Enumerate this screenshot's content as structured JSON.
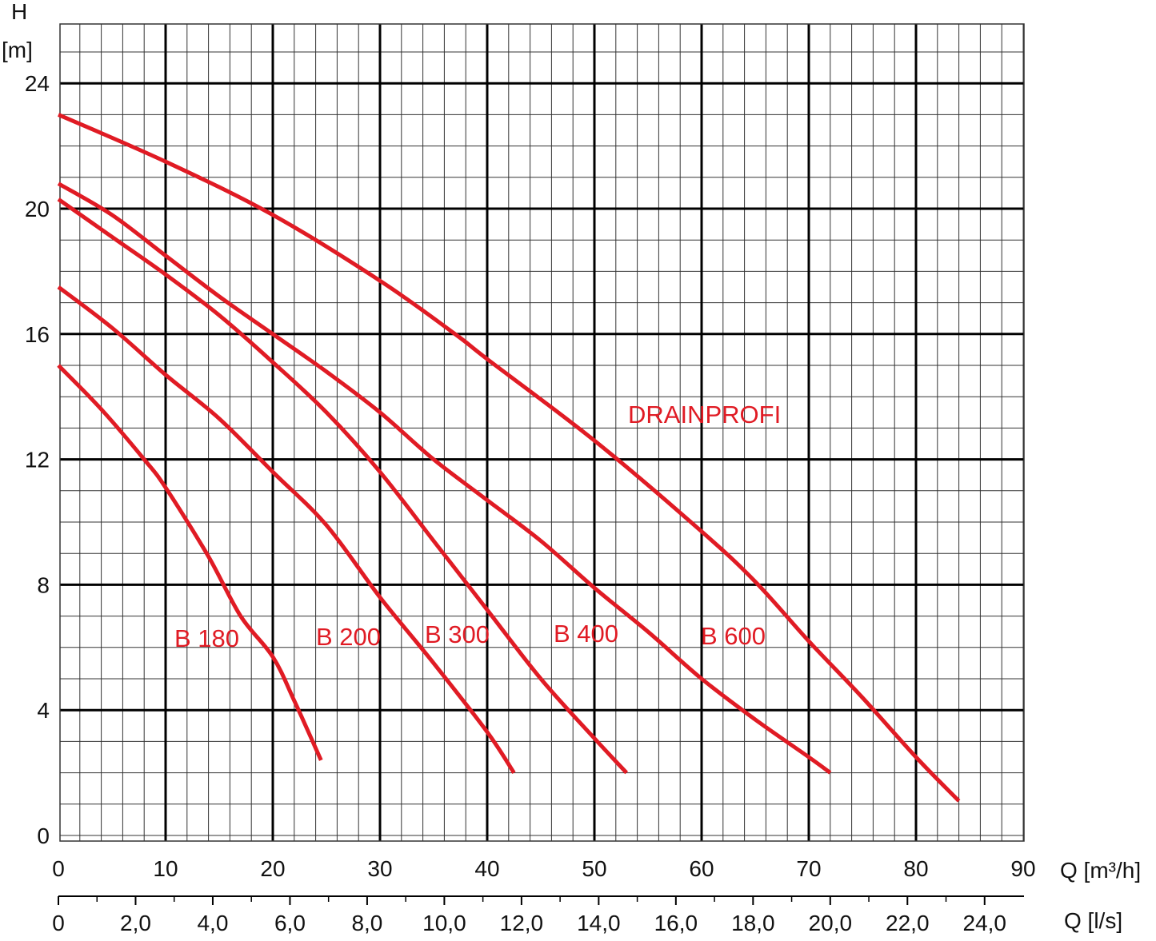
{
  "chart_data": {
    "type": "line",
    "ylabel_top": "H",
    "ylabel_unit": "[m]",
    "xlabel": "Q [m³/h]",
    "x2label": "Q [l/s]",
    "xlim": [
      0,
      90
    ],
    "ylim": [
      0,
      25
    ],
    "yticks": [
      "0",
      "4",
      "8",
      "12",
      "16",
      "20",
      "24"
    ],
    "xticks": [
      "0",
      "10",
      "20",
      "30",
      "40",
      "50",
      "60",
      "70",
      "80",
      "90"
    ],
    "x2ticks": [
      "0",
      "2,0",
      "4,0",
      "6,0",
      "8,0",
      "10,0",
      "12,0",
      "14,0",
      "16,0",
      "18,0",
      "20,0",
      "22,0",
      "24,0"
    ],
    "grid": true,
    "series_color": "#e01b24",
    "series": [
      {
        "name": "B 180",
        "x": [
          0,
          4,
          8,
          10,
          14,
          17,
          20,
          22,
          24.5
        ],
        "y": [
          15.0,
          13.6,
          12.0,
          11.1,
          8.9,
          7.0,
          5.7,
          4.3,
          2.4
        ]
      },
      {
        "name": "B 200",
        "x": [
          0,
          5,
          10,
          15,
          20,
          25,
          30,
          35,
          40,
          42.5
        ],
        "y": [
          17.5,
          16.2,
          14.7,
          13.3,
          11.6,
          9.9,
          7.6,
          5.5,
          3.3,
          2.0
        ]
      },
      {
        "name": "B 300",
        "x": [
          0,
          5,
          10,
          15,
          20,
          25,
          30,
          35,
          40,
          45,
          50,
          53
        ],
        "y": [
          20.3,
          19.1,
          17.9,
          16.6,
          15.1,
          13.5,
          11.6,
          9.4,
          7.2,
          5.0,
          3.1,
          2.0
        ]
      },
      {
        "name": "B 400",
        "x": [
          0,
          5,
          10,
          15,
          20,
          25,
          30,
          35,
          40,
          45,
          50,
          55,
          60,
          65,
          70,
          72
        ],
        "y": [
          20.8,
          19.8,
          18.5,
          17.2,
          16.0,
          14.8,
          13.5,
          12.0,
          10.7,
          9.4,
          7.9,
          6.5,
          5.0,
          3.7,
          2.5,
          2.0
        ]
      },
      {
        "name": "B 600",
        "x": [
          0,
          10,
          20,
          30,
          37,
          40,
          50,
          60,
          65,
          70,
          75,
          80,
          84
        ],
        "y": [
          23.0,
          21.5,
          19.8,
          17.7,
          16.0,
          15.2,
          12.6,
          9.7,
          8.1,
          6.2,
          4.4,
          2.5,
          1.1
        ]
      }
    ],
    "curve_labels": [
      "B 180",
      "B 200",
      "B 300",
      "B 400",
      "B 600"
    ],
    "annotation": "DRAINPROFI"
  }
}
